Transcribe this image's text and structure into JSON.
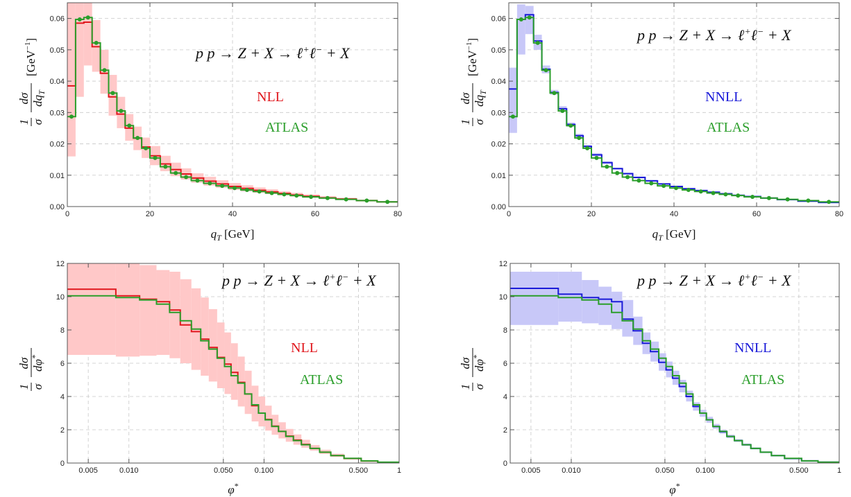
{
  "colors": {
    "nll": "#e0161c",
    "nll_band": "#ffc8c8",
    "nnll": "#1a1ad8",
    "nnll_band": "#c8c8f8",
    "atlas": "#2a9e2a",
    "grid": "#c8c8c8"
  },
  "chart_data": [
    {
      "type": "line",
      "panel": "top-left",
      "process": "p p → Z + X → ℓ⁺ℓ⁻ + X",
      "xlabel": "qT [GeV]",
      "ylabel": "1/σ dσ/dqT [GeV⁻¹]",
      "xlim": [
        0,
        80
      ],
      "ylim": [
        0,
        0.065
      ],
      "x_scale": "linear",
      "xticks": [
        0,
        20,
        40,
        60,
        80
      ],
      "xtick_labels": [
        "0",
        "20",
        "40",
        "60",
        "80"
      ],
      "yticks": [
        0,
        0.01,
        0.02,
        0.03,
        0.04,
        0.05,
        0.06
      ],
      "ytick_labels": [
        "0.00",
        "0.01",
        "0.02",
        "0.03",
        "0.04",
        "0.05",
        "0.06"
      ],
      "grid": true,
      "legend": [
        "NLL",
        "ATLAS"
      ],
      "bin_edges": [
        0,
        2,
        4,
        6,
        8,
        10,
        12,
        14,
        16,
        18,
        20,
        22.5,
        25,
        27.5,
        30,
        33,
        36,
        39,
        42,
        45,
        48,
        51,
        54,
        57,
        61,
        65,
        70,
        75,
        80
      ],
      "series": [
        {
          "name": "NLL",
          "style": "theory",
          "values": [
            0.0385,
            0.0585,
            0.0588,
            0.051,
            0.0425,
            0.035,
            0.0295,
            0.025,
            0.0218,
            0.019,
            0.0162,
            0.0136,
            0.0118,
            0.0104,
            0.0091,
            0.0081,
            0.0072,
            0.0064,
            0.0058,
            0.0052,
            0.0047,
            0.0042,
            0.0037,
            0.0033,
            0.0028,
            0.0024,
            0.0019,
            0.0015
          ],
          "band_lo": [
            0.016,
            0.035,
            0.045,
            0.043,
            0.036,
            0.029,
            0.025,
            0.021,
            0.018,
            0.0155,
            0.0132,
            0.0113,
            0.0097,
            0.0086,
            0.0076,
            0.0067,
            0.006,
            0.0053,
            0.0048,
            0.0044,
            0.004,
            0.0036,
            0.0032,
            0.0028,
            0.0024,
            0.0021,
            0.0017,
            0.0013
          ],
          "band_hi": [
            0.065,
            0.065,
            0.065,
            0.0595,
            0.05,
            0.042,
            0.035,
            0.0295,
            0.0255,
            0.022,
            0.0193,
            0.0162,
            0.014,
            0.0122,
            0.0106,
            0.0095,
            0.0084,
            0.0075,
            0.0068,
            0.0061,
            0.0055,
            0.0049,
            0.0044,
            0.0039,
            0.0033,
            0.0028,
            0.0022,
            0.0017
          ]
        },
        {
          "name": "ATLAS",
          "style": "data",
          "values": [
            0.0287,
            0.0597,
            0.0603,
            0.0522,
            0.0435,
            0.0362,
            0.0305,
            0.0258,
            0.0219,
            0.0186,
            0.0155,
            0.0127,
            0.0107,
            0.0094,
            0.0083,
            0.0074,
            0.0066,
            0.0059,
            0.0053,
            0.0048,
            0.0043,
            0.0039,
            0.0035,
            0.0031,
            0.0027,
            0.0023,
            0.0019,
            0.0015
          ]
        }
      ]
    },
    {
      "type": "line",
      "panel": "top-right",
      "process": "p p → Z + X → ℓ⁺ℓ⁻ + X",
      "xlabel": "qT [GeV]",
      "ylabel": "1/σ dσ/dqT [GeV⁻¹]",
      "xlim": [
        0,
        80
      ],
      "ylim": [
        0,
        0.065
      ],
      "x_scale": "linear",
      "xticks": [
        0,
        20,
        40,
        60,
        80
      ],
      "xtick_labels": [
        "0",
        "20",
        "40",
        "60",
        "80"
      ],
      "yticks": [
        0,
        0.01,
        0.02,
        0.03,
        0.04,
        0.05,
        0.06
      ],
      "ytick_labels": [
        "0.00",
        "0.01",
        "0.02",
        "0.03",
        "0.04",
        "0.05",
        "0.06"
      ],
      "grid": true,
      "legend": [
        "NNLL",
        "ATLAS"
      ],
      "bin_edges": [
        0,
        2,
        4,
        6,
        8,
        10,
        12,
        14,
        16,
        18,
        20,
        22.5,
        25,
        27.5,
        30,
        33,
        36,
        39,
        42,
        45,
        48,
        51,
        54,
        57,
        61,
        65,
        70,
        75,
        80
      ],
      "series": [
        {
          "name": "NNLL",
          "style": "theory",
          "values": [
            0.0375,
            0.0597,
            0.0612,
            0.0528,
            0.0438,
            0.0364,
            0.0312,
            0.0262,
            0.0226,
            0.0192,
            0.0165,
            0.014,
            0.0121,
            0.0105,
            0.0093,
            0.0082,
            0.0072,
            0.0064,
            0.0057,
            0.0051,
            0.0046,
            0.0041,
            0.0036,
            0.0032,
            0.0027,
            0.0022,
            0.0017,
            0.0013
          ],
          "band_lo": [
            0.0235,
            0.0485,
            0.055,
            0.05,
            0.0425,
            0.0357,
            0.0303,
            0.0255,
            0.0219,
            0.0187,
            0.016,
            0.0136,
            0.0118,
            0.0102,
            0.009,
            0.0079,
            0.007,
            0.0062,
            0.0055,
            0.0049,
            0.0044,
            0.0039,
            0.0035,
            0.0031,
            0.0026,
            0.0021,
            0.0016,
            0.0012
          ],
          "band_hi": [
            0.0443,
            0.0645,
            0.064,
            0.0548,
            0.045,
            0.0372,
            0.032,
            0.0268,
            0.0232,
            0.0196,
            0.017,
            0.0144,
            0.0124,
            0.0108,
            0.0096,
            0.0085,
            0.0075,
            0.0066,
            0.0059,
            0.0053,
            0.0048,
            0.0043,
            0.0038,
            0.0034,
            0.0029,
            0.0024,
            0.0019,
            0.0015
          ]
        },
        {
          "name": "ATLAS",
          "style": "data",
          "values": [
            0.0287,
            0.0597,
            0.0603,
            0.0522,
            0.0435,
            0.0362,
            0.0305,
            0.0258,
            0.0219,
            0.0186,
            0.0155,
            0.0127,
            0.0107,
            0.0094,
            0.0083,
            0.0074,
            0.0066,
            0.0059,
            0.0053,
            0.0048,
            0.0043,
            0.0039,
            0.0035,
            0.0031,
            0.0027,
            0.0023,
            0.0019,
            0.0015
          ]
        }
      ]
    },
    {
      "type": "line",
      "panel": "bottom-left",
      "process": "p p → Z + X → ℓ⁺ℓ⁻ + X",
      "xlabel": "φ*",
      "ylabel": "1/σ dσ/dφ*",
      "xlim": [
        0.0035,
        1.0
      ],
      "ylim": [
        0,
        12
      ],
      "x_scale": "log",
      "xticks": [
        0.005,
        0.01,
        0.05,
        0.1,
        0.5,
        1
      ],
      "xtick_labels": [
        "0.005",
        "0.010",
        "0.050",
        "0.100",
        "0.500",
        "1"
      ],
      "yticks": [
        0,
        2,
        4,
        6,
        8,
        10,
        12
      ],
      "ytick_labels": [
        "0",
        "2",
        "4",
        "6",
        "8",
        "10",
        "12"
      ],
      "grid": true,
      "legend": [
        "NLL",
        "ATLAS"
      ],
      "bin_edges": [
        0.0035,
        0.008,
        0.012,
        0.016,
        0.02,
        0.024,
        0.029,
        0.034,
        0.039,
        0.045,
        0.051,
        0.057,
        0.064,
        0.072,
        0.081,
        0.091,
        0.102,
        0.114,
        0.128,
        0.145,
        0.165,
        0.189,
        0.219,
        0.258,
        0.312,
        0.391,
        0.524,
        0.695,
        1.0
      ],
      "series": [
        {
          "name": "NLL",
          "style": "theory",
          "values": [
            10.45,
            10.05,
            9.85,
            9.7,
            9.2,
            8.3,
            7.9,
            7.45,
            6.95,
            6.35,
            5.95,
            5.45,
            4.85,
            4.15,
            3.45,
            3.0,
            2.62,
            2.22,
            1.9,
            1.62,
            1.38,
            1.12,
            0.88,
            0.65,
            0.45,
            0.27,
            0.12,
            0.04
          ],
          "band_lo": [
            6.5,
            6.4,
            6.45,
            6.5,
            6.3,
            6.0,
            5.6,
            5.25,
            4.9,
            4.5,
            4.15,
            3.8,
            3.4,
            2.95,
            2.5,
            2.2,
            1.95,
            1.7,
            1.48,
            1.28,
            1.1,
            0.92,
            0.74,
            0.55,
            0.38,
            0.23,
            0.1,
            0.03
          ],
          "band_hi": [
            12.0,
            12.0,
            11.9,
            11.6,
            11.5,
            11.05,
            10.5,
            9.95,
            9.25,
            8.45,
            7.85,
            7.2,
            6.4,
            5.55,
            4.65,
            4.0,
            3.45,
            2.9,
            2.45,
            2.05,
            1.72,
            1.4,
            1.08,
            0.8,
            0.56,
            0.33,
            0.15,
            0.05
          ]
        },
        {
          "name": "ATLAS",
          "style": "data",
          "values": [
            10.05,
            9.95,
            9.8,
            9.55,
            9.05,
            8.55,
            8.05,
            7.35,
            6.85,
            6.3,
            5.8,
            5.25,
            4.8,
            4.15,
            3.5,
            3.0,
            2.6,
            2.2,
            1.9,
            1.6,
            1.35,
            1.1,
            0.88,
            0.65,
            0.45,
            0.28,
            0.13,
            0.05
          ]
        }
      ]
    },
    {
      "type": "line",
      "panel": "bottom-right",
      "process": "p p → Z + X → ℓ⁺ℓ⁻ + X",
      "xlabel": "φ*",
      "ylabel": "1/σ dσ/dφ*",
      "xlim": [
        0.0035,
        1.0
      ],
      "ylim": [
        0,
        12
      ],
      "x_scale": "log",
      "xticks": [
        0.005,
        0.01,
        0.05,
        0.1,
        0.5,
        1
      ],
      "xtick_labels": [
        "0.005",
        "0.010",
        "0.050",
        "0.100",
        "0.500",
        "1"
      ],
      "yticks": [
        0,
        2,
        4,
        6,
        8,
        10,
        12
      ],
      "ytick_labels": [
        "0",
        "2",
        "4",
        "6",
        "8",
        "10",
        "12"
      ],
      "grid": true,
      "legend": [
        "NNLL",
        "ATLAS"
      ],
      "bin_edges": [
        0.0035,
        0.008,
        0.012,
        0.016,
        0.02,
        0.024,
        0.029,
        0.034,
        0.039,
        0.045,
        0.051,
        0.057,
        0.064,
        0.072,
        0.081,
        0.091,
        0.102,
        0.114,
        0.128,
        0.145,
        0.165,
        0.189,
        0.219,
        0.258,
        0.312,
        0.391,
        0.524,
        0.695,
        1.0
      ],
      "series": [
        {
          "name": "NNLL",
          "style": "theory",
          "values": [
            10.5,
            10.15,
            9.95,
            9.85,
            9.7,
            8.65,
            7.95,
            7.2,
            6.7,
            6.05,
            5.6,
            5.1,
            4.6,
            4.0,
            3.4,
            3.0,
            2.6,
            2.2,
            1.88,
            1.6,
            1.35,
            1.1,
            0.88,
            0.65,
            0.45,
            0.27,
            0.13,
            0.05
          ],
          "band_lo": [
            8.3,
            8.5,
            8.4,
            8.3,
            8.05,
            7.6,
            7.1,
            6.55,
            6.1,
            5.55,
            5.15,
            4.7,
            4.25,
            3.7,
            3.15,
            2.78,
            2.42,
            2.06,
            1.76,
            1.5,
            1.27,
            1.03,
            0.82,
            0.61,
            0.42,
            0.25,
            0.12,
            0.04
          ],
          "band_hi": [
            11.5,
            11.5,
            11.0,
            10.6,
            10.3,
            9.8,
            8.8,
            7.85,
            7.3,
            6.6,
            6.1,
            5.55,
            5.0,
            4.35,
            3.65,
            3.2,
            2.78,
            2.35,
            2.0,
            1.7,
            1.43,
            1.17,
            0.93,
            0.69,
            0.48,
            0.29,
            0.14,
            0.06
          ]
        },
        {
          "name": "ATLAS",
          "style": "data",
          "values": [
            10.05,
            9.95,
            9.8,
            9.55,
            9.05,
            8.55,
            8.05,
            7.35,
            6.85,
            6.3,
            5.8,
            5.25,
            4.8,
            4.15,
            3.5,
            3.0,
            2.6,
            2.2,
            1.9,
            1.6,
            1.35,
            1.1,
            0.88,
            0.65,
            0.45,
            0.28,
            0.13,
            0.05
          ]
        }
      ]
    }
  ]
}
